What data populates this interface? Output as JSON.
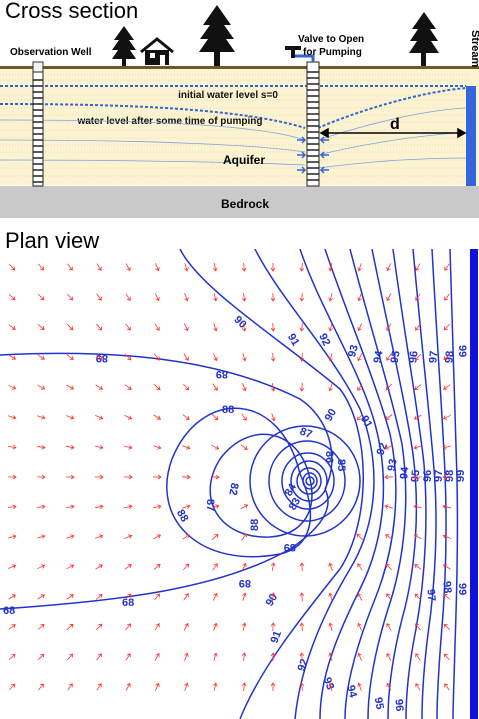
{
  "cross_section": {
    "title": "Cross section",
    "labels": {
      "observation_well": "Observation Well",
      "valve": "Valve to Open\nfor Pumping",
      "stream": "Stream",
      "initial_level": "initial water level s=0",
      "after_pumping": "water level after some time of pumping",
      "distance": "d",
      "aquifer": "Aquifer",
      "bedrock": "Bedrock"
    }
  },
  "plan_view": {
    "title": "Plan view",
    "contour_levels": [
      "89",
      "89",
      "88",
      "88",
      "89",
      "89",
      "68",
      "68",
      "90",
      "90",
      "91",
      "91",
      "92",
      "92",
      "93",
      "93",
      "94",
      "94",
      "95",
      "95",
      "96",
      "96",
      "97",
      "97",
      "98",
      "98",
      "99",
      "99",
      "87",
      "87",
      "86",
      "85",
      "84",
      "83",
      "82",
      "88",
      "90",
      "91",
      "92",
      "93",
      "94",
      "95",
      "96",
      "97",
      "98",
      "99"
    ]
  },
  "colors": {
    "contour": "#2233cc",
    "arrow": "#ff3333",
    "stream": "#1111dd",
    "bedrock": "#c9c9c9",
    "aquifer": "#fbf3d2"
  }
}
